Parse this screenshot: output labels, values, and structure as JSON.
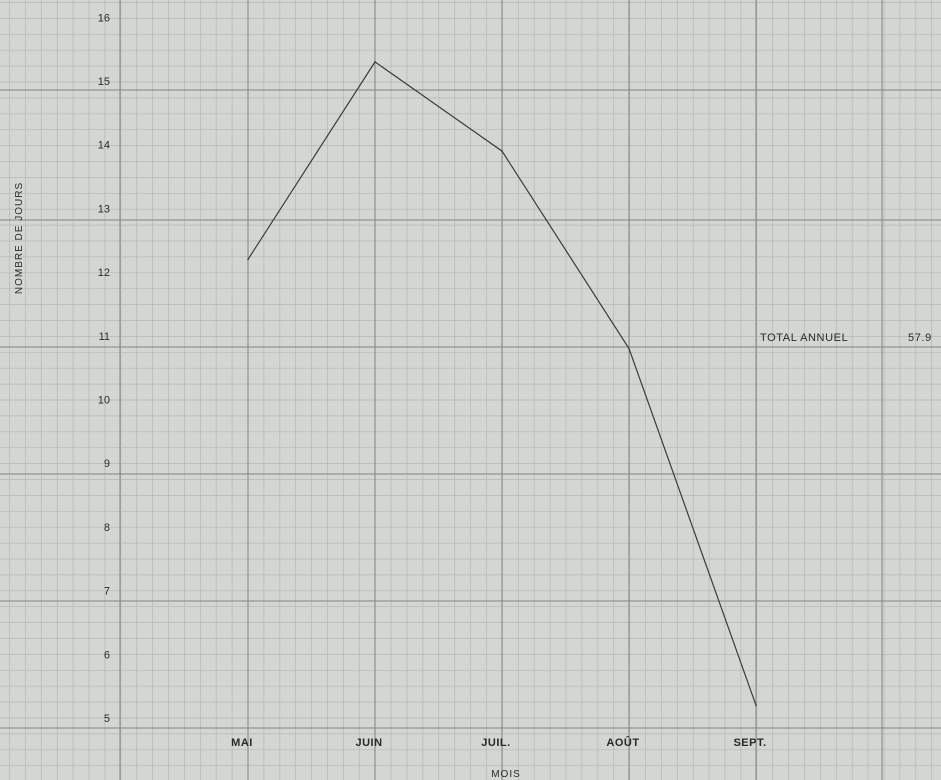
{
  "chart_data": {
    "type": "line",
    "title": "",
    "xlabel": "MOIS",
    "ylabel": "NOMBRE DE JOURS",
    "categories": [
      "MAI",
      "JUIN",
      "JUIL.",
      "AOÛT",
      "SEPT."
    ],
    "series": [
      {
        "values": [
          12.2,
          15.3,
          13.9,
          10.8,
          5.2
        ]
      }
    ],
    "y_ticks": [
      5,
      6,
      7,
      8,
      9,
      10,
      11,
      12,
      13,
      14,
      15,
      16
    ],
    "ylim": [
      4.8,
      16.2
    ],
    "grid": true,
    "annotation": {
      "label": "TOTAL ANNUEL",
      "value": "57.9"
    },
    "colors": {
      "background": "#d3d6d2",
      "minor_grid": "#b3b9b4",
      "major_grid": "#7f8781",
      "line": "#3b3b3b",
      "text": "#2a2a2a"
    }
  }
}
